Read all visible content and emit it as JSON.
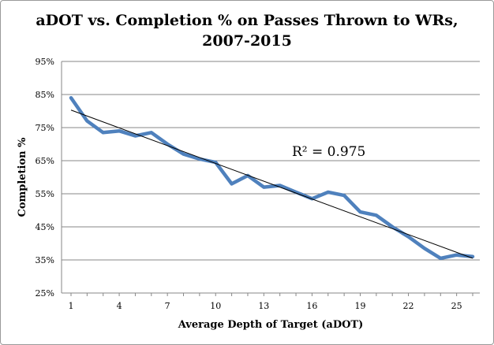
{
  "chart_data": {
    "type": "line",
    "title_line1": "aDOT vs. Completion % on Passes Thrown to WRs,",
    "title_line2": "2007-2015",
    "xlabel": "Average Depth of Target (aDOT)",
    "ylabel": "Completion %",
    "xlim": [
      1,
      26
    ],
    "ylim": [
      25,
      95
    ],
    "x_ticks": [
      1,
      4,
      7,
      10,
      13,
      16,
      19,
      22,
      25
    ],
    "y_ticks": [
      "25%",
      "35%",
      "45%",
      "55%",
      "65%",
      "75%",
      "85%",
      "95%"
    ],
    "grid": true,
    "series": [
      {
        "x": [
          1,
          2,
          3,
          4,
          5,
          6,
          7,
          8,
          9,
          10,
          11,
          12,
          13,
          14,
          15,
          16,
          17,
          18,
          19,
          20,
          21,
          22,
          23,
          24,
          25,
          26
        ],
        "values": [
          84.0,
          77.0,
          73.5,
          74.0,
          72.5,
          73.5,
          70.0,
          67.0,
          65.5,
          64.5,
          58.0,
          60.5,
          57.0,
          57.5,
          55.5,
          53.5,
          55.5,
          54.5,
          49.5,
          48.5,
          45.0,
          42.0,
          38.5,
          35.5,
          36.5,
          36.0
        ],
        "color": "#4f81bd"
      }
    ],
    "trendline": {
      "x": [
        1,
        26
      ],
      "values": [
        80.3,
        35.5
      ],
      "color": "#000000"
    },
    "annotation": {
      "text": "R² = 0.975"
    }
  }
}
